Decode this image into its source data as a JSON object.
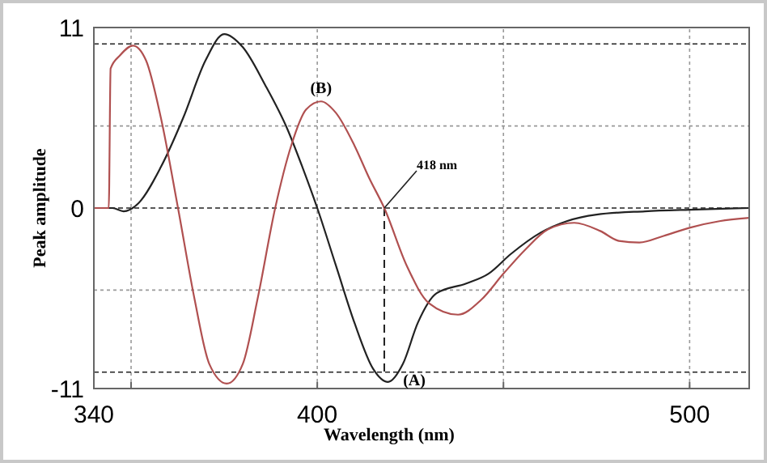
{
  "chart_data": {
    "type": "line",
    "xlabel": "Wavelength (nm)",
    "ylabel": "Peak amplitude",
    "xlim": [
      340,
      516
    ],
    "xticks": [
      340,
      {
        "value": 350,
        "label": null
      },
      400,
      {
        "value": 450,
        "label": null
      },
      500
    ],
    "ylim": [
      -11,
      11
    ],
    "yticks": [
      -11,
      {
        "value": -10,
        "label": null
      },
      {
        "value": -5,
        "label": null
      },
      0,
      {
        "value": 5,
        "label": null
      },
      {
        "value": 10,
        "label": null
      },
      11
    ],
    "grid": true,
    "marker": "none",
    "line_style": "solid",
    "series": [
      {
        "color": "#222222",
        "x": [
          340,
          345,
          348,
          352,
          358,
          364,
          370,
          375,
          380,
          386,
          392,
          396,
          400,
          405,
          410,
          415,
          419,
          423,
          427,
          432,
          440,
          446,
          452,
          460,
          467,
          475,
          488,
          500,
          516
        ],
        "values": [
          0,
          0,
          -0.2,
          0.3,
          2.5,
          5.5,
          9,
          10.6,
          9.8,
          7.5,
          4.8,
          2.5,
          0,
          -3.5,
          -7,
          -9.8,
          -10.6,
          -9.5,
          -7,
          -5.2,
          -4.6,
          -4,
          -2.8,
          -1.5,
          -0.8,
          -0.4,
          -0.2,
          -0.1,
          0
        ]
      },
      {
        "color": "#b05050",
        "x": [
          340,
          344,
          344.5,
          347,
          350.5,
          354,
          358,
          362.6,
          367,
          371,
          375.7,
          380,
          384,
          388.7,
          393,
          397,
          401,
          405,
          410,
          414,
          418,
          424,
          430,
          437.8,
          444,
          450,
          456,
          462,
          469,
          476,
          481,
          486.5,
          493,
          500,
          508,
          516
        ],
        "values": [
          0,
          0,
          8.5,
          9.3,
          9.9,
          9,
          5.5,
          0,
          -5.5,
          -9.5,
          -10.7,
          -9.5,
          -5.5,
          0,
          3.8,
          6,
          6.5,
          5.8,
          3.8,
          1.8,
          0,
          -3.5,
          -5.8,
          -6.5,
          -5.6,
          -4,
          -2.5,
          -1.3,
          -0.9,
          -1.4,
          -2,
          -2.1,
          -1.7,
          -1.2,
          -0.8,
          -0.6
        ]
      }
    ],
    "ref_lines": [
      {
        "axis": "x",
        "value": 418,
        "line_style": "dashed",
        "color": "#222222"
      }
    ],
    "annotations": [
      {
        "text": "418 nm",
        "x": 418,
        "y": 0
      },
      {
        "text": "(A)",
        "x": 420,
        "y": -10.6
      },
      {
        "text": "(B)",
        "x": 401,
        "y": 6.5
      }
    ]
  }
}
